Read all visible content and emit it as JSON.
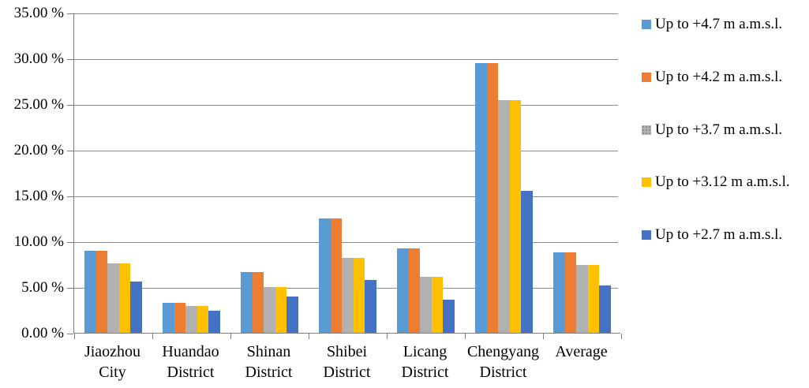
{
  "chart_data": {
    "type": "bar",
    "title": "",
    "xlabel": "",
    "ylabel": "",
    "categories": [
      "Jiaozhou City",
      "Huandao District",
      "Shinan District",
      "Shibei District",
      "Licang District",
      "Chengyang District",
      "Average"
    ],
    "category_label_lines": [
      [
        "Jiaozhou",
        "City"
      ],
      [
        "Huandao",
        "District"
      ],
      [
        "Shinan",
        "District"
      ],
      [
        "Shibei",
        "District"
      ],
      [
        "Licang",
        "District"
      ],
      [
        "Chengyang",
        "District"
      ],
      [
        "Average"
      ]
    ],
    "series": [
      {
        "name": "Up to +4.7 m a.m.s.l.",
        "color": "#5B9BD5",
        "pattern": "solid",
        "values": [
          9.0,
          3.3,
          6.6,
          12.5,
          9.2,
          29.5,
          8.8
        ]
      },
      {
        "name": "Up to +4.2 m a.m.s.l.",
        "color": "#ED7D31",
        "pattern": "solid",
        "values": [
          9.0,
          3.3,
          6.6,
          12.5,
          9.2,
          29.5,
          8.8
        ]
      },
      {
        "name": "Up to +3.7 m a.m.s.l.",
        "color": "#B1B1B1",
        "pattern": "stipple",
        "values": [
          7.6,
          2.9,
          5.0,
          8.2,
          6.1,
          25.4,
          7.4
        ]
      },
      {
        "name": "Up to +3.12 m a.m.s.l.",
        "color": "#FFC000",
        "pattern": "solid",
        "values": [
          7.6,
          2.9,
          5.0,
          8.2,
          6.1,
          25.4,
          7.4
        ]
      },
      {
        "name": "Up to +2.7 m a.m.s.l.",
        "color": "#4472C4",
        "pattern": "solid",
        "values": [
          5.6,
          2.4,
          4.0,
          5.8,
          3.6,
          15.5,
          5.2
        ]
      }
    ],
    "ylim": [
      0,
      35
    ],
    "ytick_step": 5,
    "ytick_labels": [
      "0.00 %",
      "5.00 %",
      "10.00 %",
      "15.00 %",
      "20.00 %",
      "25.00 %",
      "30.00 %",
      "35.00 %"
    ],
    "grid": true,
    "legend_position": "right",
    "colors": {
      "gridline": "#8C8C8C",
      "axis": "#7F7F7F",
      "text": "#000000",
      "background": "#FFFFFF"
    }
  }
}
